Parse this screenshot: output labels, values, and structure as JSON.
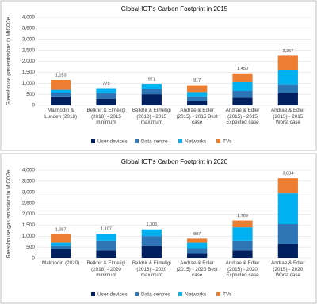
{
  "chart_data": [
    {
      "type": "bar",
      "stacked": true,
      "title": "Global ICT's Carbon Footprint in 2015",
      "y_label": "Greenhouse gas emissions in MtCO2e",
      "categories": [
        "Malmodin & Lunden (2018)",
        "Belkhir & Elmeligi (2018) - 2015 minimum",
        "Belkhir & Elmeligi (2018) - 2015 maximum",
        "Andrae & Edler (2015) - 2015 Best case",
        "Andrae & Edler (2015) - 2015 Expected case",
        "Andrae & Edler (2015) - 2015 Worst case"
      ],
      "series": [
        {
          "name": "User devices",
          "color": "#002060",
          "values": [
            400,
            300,
            500,
            200,
            350,
            550
          ]
        },
        {
          "name": "Data centre",
          "color": "#2e75b6",
          "values": [
            150,
            250,
            250,
            200,
            300,
            400
          ]
        },
        {
          "name": "Networks",
          "color": "#00b0f0",
          "values": [
            150,
            225,
            221,
            200,
            400,
            650
          ]
        },
        {
          "name": "TVs",
          "color": "#ed7d31",
          "values": [
            453,
            0,
            0,
            317,
            400,
            657
          ]
        }
      ],
      "totals": [
        1153,
        775,
        971,
        917,
        1450,
        2257
      ],
      "total_labels": [
        "1,153",
        "775",
        "971",
        "917",
        "1,450",
        "2,257"
      ],
      "ylim": [
        0,
        4000
      ],
      "yticks": [
        0,
        500,
        {
          "value": 1000,
          "label": "1,000"
        },
        {
          "value": 1500,
          "label": "1,500"
        },
        {
          "value": 2000,
          "label": "2,000"
        },
        {
          "value": 2500,
          "label": "2,500"
        },
        {
          "value": 3000,
          "label": "3,000"
        },
        {
          "value": 3500,
          "label": "3,500"
        },
        {
          "value": 4000,
          "label": "4,000"
        }
      ],
      "legend": "bottom"
    },
    {
      "type": "bar",
      "stacked": true,
      "title": "Global ICT's Carbon Footprint in 2020",
      "y_label": "Greenhouse gas emissions in MtCO2e",
      "categories": [
        "Malmodin (2020)",
        "Belkhir & Elmeligi (2018) - 2020 minimum",
        "Belkhir & Elmeligi (2018) - 2020 maximum",
        "Andrae & Edler (2015) - 2020 Best case",
        "Andrae & Edler (2015) - 2020 Expected case",
        "Andrae & Edler (2015) - 2020 Worst case"
      ],
      "series": [
        {
          "name": "User devices",
          "color": "#002060",
          "values": [
            400,
            350,
            550,
            200,
            350,
            650
          ]
        },
        {
          "name": "Data centres",
          "color": "#2e75b6",
          "values": [
            150,
            450,
            450,
            250,
            450,
            900
          ]
        },
        {
          "name": "Networks",
          "color": "#00b0f0",
          "values": [
            150,
            307,
            306,
            250,
            600,
            1400
          ]
        },
        {
          "name": "TVs",
          "color": "#ed7d31",
          "values": [
            387,
            0,
            0,
            187,
            309,
            684
          ]
        }
      ],
      "totals": [
        1087,
        1107,
        1306,
        887,
        1709,
        3634
      ],
      "total_labels": [
        "1,087",
        "1,107",
        "1,306",
        "887",
        "1,709",
        "3,634"
      ],
      "ylim": [
        0,
        4000
      ],
      "yticks": [
        0,
        500,
        {
          "value": 1000,
          "label": "1,000"
        },
        {
          "value": 1500,
          "label": "1,500"
        },
        {
          "value": 2000,
          "label": "2,000"
        },
        {
          "value": 2500,
          "label": "2,500"
        },
        {
          "value": 3000,
          "label": "3,000"
        },
        {
          "value": 3500,
          "label": "3,500"
        },
        {
          "value": 4000,
          "label": "4,000"
        }
      ],
      "legend": "bottom"
    }
  ]
}
